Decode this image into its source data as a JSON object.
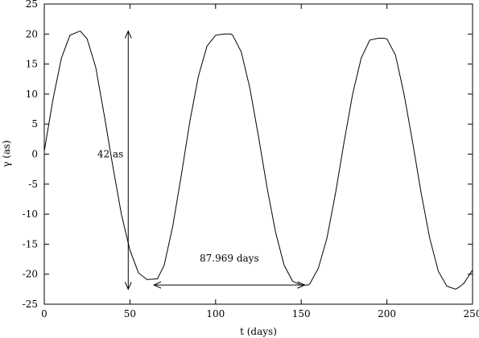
{
  "chart_data": {
    "type": "line",
    "xlabel": "t (days)",
    "ylabel": "γ (as)",
    "xlim": [
      0,
      250
    ],
    "ylim": [
      -25,
      25
    ],
    "xticks": [
      0,
      50,
      100,
      150,
      200,
      250
    ],
    "yticks": [
      -25,
      -20,
      -15,
      -10,
      -5,
      0,
      5,
      10,
      15,
      20,
      25
    ],
    "grid": false,
    "legend": "none",
    "series": [
      {
        "x": [
          0,
          5,
          10,
          15,
          20,
          21,
          25,
          30,
          35,
          40,
          45,
          50,
          55,
          60,
          65,
          66,
          70,
          75,
          80,
          85,
          90,
          95,
          100,
          105,
          109,
          110,
          115,
          120,
          125,
          130,
          135,
          140,
          145,
          150,
          154,
          155,
          160,
          165,
          170,
          175,
          180,
          185,
          190,
          195,
          198,
          200,
          205,
          210,
          215,
          220,
          225,
          230,
          235,
          240,
          242,
          245,
          250
        ],
        "values": [
          0.5,
          9,
          16,
          19.8,
          20.4,
          20.5,
          19.2,
          14.5,
          6.5,
          -2,
          -10,
          -16,
          -19.8,
          -20.9,
          -20.8,
          -20.8,
          -18.5,
          -12,
          -3.5,
          5.5,
          13,
          18,
          19.8,
          20,
          20,
          19.8,
          17,
          11,
          3,
          -5.5,
          -13,
          -18.5,
          -21.2,
          -21.8,
          -21.8,
          -21.6,
          -19,
          -14,
          -6.5,
          2,
          10,
          16,
          19,
          19.3,
          19.3,
          19.2,
          16.5,
          10,
          2,
          -6.5,
          -14,
          -19.5,
          -22,
          -22.5,
          -22.2,
          -21.5,
          -19.3
        ]
      }
    ],
    "annotations": [
      {
        "text": "42 as",
        "from": [
          49,
          -22.5
        ],
        "to": [
          49,
          20.5
        ]
      },
      {
        "text": "87.969 days",
        "from": [
          64,
          -21.8
        ],
        "to": [
          152,
          -21.8
        ]
      }
    ]
  }
}
